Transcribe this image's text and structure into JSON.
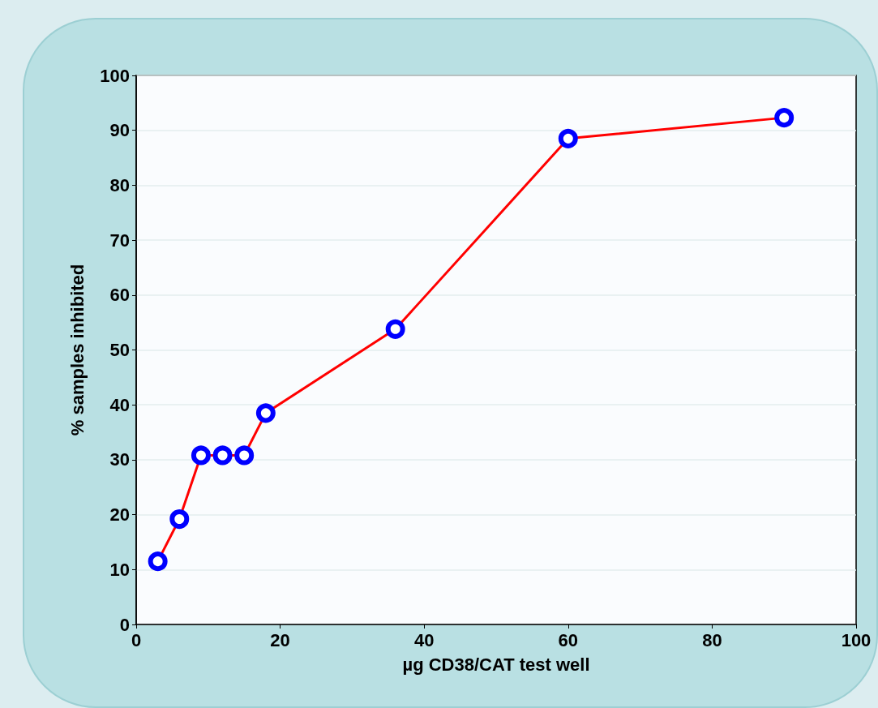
{
  "chart_data": {
    "type": "line",
    "xlabel": "µg CD38/CAT test well",
    "ylabel": "% samples inhibited",
    "x": [
      3,
      6,
      9,
      12,
      15,
      18,
      36,
      60,
      90
    ],
    "series": [
      {
        "color": "#ff0000",
        "values": [
          11.5,
          19.2,
          30.8,
          30.8,
          30.8,
          38.5,
          53.8,
          88.5,
          92.3
        ]
      }
    ],
    "xlim": [
      0,
      100
    ],
    "xticks": [
      0,
      20,
      40,
      60,
      80,
      100
    ],
    "ylim": [
      0,
      100
    ],
    "yticks": [
      0,
      10,
      20,
      30,
      40,
      50,
      60,
      70,
      80,
      90,
      100
    ],
    "grid": "y",
    "marker": "circle",
    "line_style": "solid"
  }
}
